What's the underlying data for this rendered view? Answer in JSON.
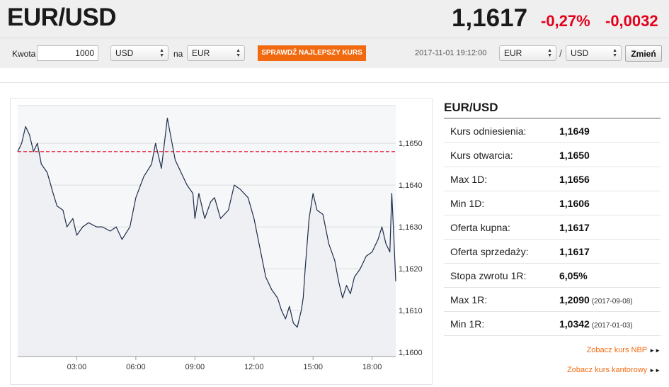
{
  "header": {
    "pair": "EUR/USD",
    "price": "1,1617",
    "change_pct": "-0,27%",
    "change_abs": "-0,0032"
  },
  "converter": {
    "amount_label": "Kwota",
    "amount_value": "1000",
    "from_currency": "USD",
    "to_label": "na",
    "to_currency": "EUR",
    "check_button": "SPRAWDŹ NAJLEPSZY KURS",
    "datetime": "2017-11-01 19:12:00",
    "base_currency": "EUR",
    "separator": "/",
    "quote_currency": "USD",
    "change_button": "Zmień"
  },
  "stats": {
    "title": "EUR/USD",
    "rows": [
      {
        "label": "Kurs odniesienia:",
        "value": "1,1649",
        "date": ""
      },
      {
        "label": "Kurs otwarcia:",
        "value": "1,1650",
        "date": ""
      },
      {
        "label": "Max 1D:",
        "value": "1,1656",
        "date": ""
      },
      {
        "label": "Min 1D:",
        "value": "1,1606",
        "date": ""
      },
      {
        "label": "Oferta kupna:",
        "value": "1,1617",
        "date": ""
      },
      {
        "label": "Oferta sprzedaży:",
        "value": "1,1617",
        "date": ""
      },
      {
        "label": "Stopa zwrotu 1R:",
        "value": "6,05%",
        "date": ""
      },
      {
        "label": "Max 1R:",
        "value": "1,2090",
        "date": "(2017-09-08)"
      },
      {
        "label": "Min 1R:",
        "value": "1,0342",
        "date": "(2017-01-03)"
      }
    ],
    "link_nbp": "Zobacz kurs NBP",
    "link_kantor": "Zobacz kurs kantorowy"
  },
  "icons": {
    "select_arrows": "up-down-arrows-icon",
    "link_arrow": "double-chevron-right-icon"
  },
  "colors": {
    "accent": "#f26a10",
    "negative": "#e3001b",
    "series_line": "#1f2d4a",
    "reference_line": "#e3001b"
  },
  "chart_data": {
    "type": "line",
    "x_ticks": [
      "03:00",
      "06:00",
      "09:00",
      "12:00",
      "15:00",
      "18:00"
    ],
    "x_tick_hours": [
      3,
      6,
      9,
      12,
      15,
      18
    ],
    "y_ticks": [
      "1,1600",
      "1,1610",
      "1,1620",
      "1,1630",
      "1,1640",
      "1,1650"
    ],
    "y_tick_values": [
      1.16,
      1.161,
      1.162,
      1.163,
      1.164,
      1.165
    ],
    "xlim": [
      0,
      19.2
    ],
    "ylim": [
      1.1599,
      1.1659
    ],
    "reference_value": 1.1648,
    "grid": "horizontal",
    "series": [
      {
        "x": [
          0,
          0.2,
          0.4,
          0.6,
          0.8,
          1.0,
          1.2,
          1.5,
          1.8,
          2.0,
          2.3,
          2.5,
          2.8,
          3.0,
          3.3,
          3.6,
          4.0,
          4.3,
          4.7,
          5.0,
          5.3,
          5.7,
          6.0,
          6.4,
          6.8,
          7.0,
          7.3,
          7.6,
          8.0,
          8.3,
          8.6,
          8.9,
          9.0,
          9.2,
          9.5,
          9.8,
          10.0,
          10.3,
          10.7,
          11.0,
          11.3,
          11.7,
          12.0,
          12.3,
          12.6,
          12.9,
          13.2,
          13.4,
          13.6,
          13.8,
          14.0,
          14.2,
          14.4,
          14.5,
          14.6,
          14.8,
          15.0,
          15.2,
          15.5,
          15.8,
          16.1,
          16.3,
          16.5,
          16.7,
          16.9,
          17.1,
          17.4,
          17.7,
          18.0,
          18.3,
          18.5,
          18.7,
          18.9,
          19.0,
          19.1,
          19.2
        ],
        "y": [
          1.1648,
          1.165,
          1.1654,
          1.1652,
          1.1648,
          1.165,
          1.1645,
          1.1643,
          1.1638,
          1.1635,
          1.1634,
          1.163,
          1.1632,
          1.1628,
          1.163,
          1.1631,
          1.163,
          1.163,
          1.1629,
          1.163,
          1.1627,
          1.163,
          1.1637,
          1.1642,
          1.1645,
          1.165,
          1.1644,
          1.1656,
          1.1646,
          1.1643,
          1.164,
          1.1638,
          1.1632,
          1.1638,
          1.1632,
          1.1636,
          1.1637,
          1.1632,
          1.1634,
          1.164,
          1.1639,
          1.1637,
          1.1632,
          1.1625,
          1.1618,
          1.1615,
          1.1613,
          1.161,
          1.1608,
          1.1611,
          1.1607,
          1.1606,
          1.161,
          1.1613,
          1.162,
          1.1632,
          1.1638,
          1.1634,
          1.1633,
          1.1626,
          1.1622,
          1.1617,
          1.1613,
          1.1616,
          1.1614,
          1.1618,
          1.162,
          1.1623,
          1.1624,
          1.1627,
          1.163,
          1.1626,
          1.1624,
          1.1638,
          1.1628,
          1.1617
        ]
      }
    ]
  }
}
